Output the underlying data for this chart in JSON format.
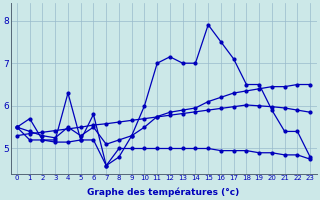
{
  "xlabel": "Graphe des températures (°c)",
  "bg_color": "#cce8e8",
  "grid_color": "#99bbcc",
  "line_color": "#0000bb",
  "x": [
    0,
    1,
    2,
    3,
    4,
    5,
    6,
    7,
    8,
    9,
    10,
    11,
    12,
    13,
    14,
    15,
    16,
    17,
    18,
    19,
    20,
    21,
    22,
    23
  ],
  "observed": [
    5.5,
    5.7,
    5.2,
    5.2,
    6.3,
    5.2,
    5.8,
    4.6,
    4.8,
    5.3,
    6.0,
    7.0,
    7.15,
    7.0,
    7.0,
    7.9,
    7.5,
    7.1,
    6.5,
    6.5,
    5.9,
    5.4,
    5.4,
    4.8
  ],
  "line_avg": [
    5.5,
    5.4,
    5.3,
    5.25,
    5.5,
    5.3,
    5.5,
    5.1,
    5.2,
    5.3,
    5.5,
    5.75,
    5.85,
    5.9,
    5.95,
    6.1,
    6.2,
    6.3,
    6.35,
    6.4,
    6.45,
    6.45,
    6.5,
    6.5
  ],
  "line_min": [
    5.5,
    5.2,
    5.2,
    5.15,
    5.15,
    5.2,
    5.2,
    4.6,
    5.0,
    5.0,
    5.0,
    5.0,
    5.0,
    5.0,
    5.0,
    5.0,
    4.95,
    4.95,
    4.95,
    4.9,
    4.9,
    4.85,
    4.85,
    4.75
  ],
  "line_trend": [
    5.3,
    5.35,
    5.38,
    5.42,
    5.46,
    5.5,
    5.55,
    5.58,
    5.62,
    5.66,
    5.7,
    5.74,
    5.78,
    5.82,
    5.86,
    5.9,
    5.94,
    5.98,
    6.02,
    6.0,
    5.98,
    5.95,
    5.9,
    5.85
  ],
  "ylim": [
    4.4,
    8.4
  ],
  "yticks": [
    5,
    6,
    7,
    8
  ],
  "xlim": [
    -0.5,
    23.5
  ]
}
